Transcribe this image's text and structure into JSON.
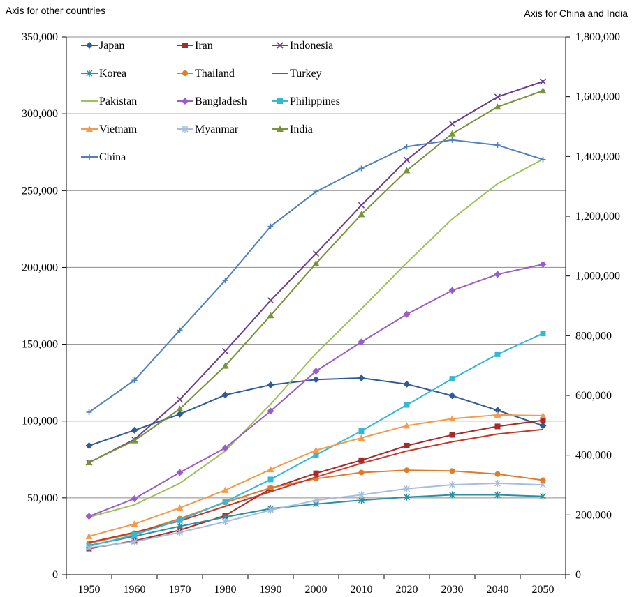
{
  "chart_data": {
    "type": "line",
    "left_axis_title": "Axis for other countries",
    "right_axis_title": "Axis for China and India",
    "categories": [
      "1950",
      "1960",
      "1970",
      "1980",
      "1990",
      "2000",
      "2010",
      "2020",
      "2030",
      "2040",
      "2050"
    ],
    "ylim_left": [
      0,
      350000
    ],
    "ylim_right": [
      0,
      1800000
    ],
    "yticks_left": [
      "0",
      "50,000",
      "100,000",
      "150,000",
      "200,000",
      "250,000",
      "300,000",
      "350,000"
    ],
    "yticks_right": [
      "0",
      "200,000",
      "400,000",
      "600,000",
      "800,000",
      "1,000,000",
      "1,200,000",
      "1,400,000",
      "1,600,000",
      "1,800,000"
    ],
    "grid": true,
    "legend_placement": "top-left",
    "series": [
      {
        "name": "Japan",
        "axis": "left",
        "color": "#2e5b98",
        "marker": "diamond",
        "values": [
          84000,
          94000,
          104500,
          117000,
          123500,
          127000,
          128000,
          124000,
          116500,
          107000,
          97000
        ]
      },
      {
        "name": "Iran",
        "axis": "left",
        "color": "#a52a2a",
        "marker": "square",
        "values": [
          17000,
          22000,
          29000,
          38500,
          56000,
          66000,
          74500,
          84000,
          91000,
          96500,
          100500
        ]
      },
      {
        "name": "Indonesia",
        "axis": "left",
        "color": "#6a3d8c",
        "marker": "x",
        "values": [
          73000,
          88000,
          114000,
          145500,
          178500,
          209000,
          240500,
          270000,
          293500,
          311000,
          321000
        ]
      },
      {
        "name": "Korea",
        "axis": "left",
        "color": "#2a8fa0",
        "marker": "star",
        "values": [
          19000,
          25000,
          31500,
          37500,
          43000,
          46000,
          48500,
          50500,
          52000,
          52000,
          51000
        ]
      },
      {
        "name": "Thailand",
        "axis": "left",
        "color": "#e07b2a",
        "marker": "circle",
        "values": [
          20500,
          27000,
          36500,
          47000,
          56500,
          62500,
          66500,
          68000,
          67500,
          65500,
          61500
        ]
      },
      {
        "name": "Turkey",
        "axis": "left",
        "color": "#c0392b",
        "marker": "none",
        "values": [
          21000,
          27500,
          35000,
          44500,
          54000,
          63500,
          72500,
          80500,
          86500,
          91500,
          94500
        ]
      },
      {
        "name": "Pakistan",
        "axis": "left",
        "color": "#9bc35a",
        "marker": "none",
        "values": [
          37500,
          45500,
          59500,
          80500,
          111000,
          144000,
          173000,
          203000,
          231500,
          254500,
          270500
        ]
      },
      {
        "name": "Bangladesh",
        "axis": "left",
        "color": "#9a5cc7",
        "marker": "diamond",
        "values": [
          38000,
          49500,
          66500,
          82500,
          106500,
          132500,
          151500,
          169500,
          185000,
          195500,
          202000
        ]
      },
      {
        "name": "Philippines",
        "axis": "left",
        "color": "#33b8d6",
        "marker": "square",
        "values": [
          18500,
          26000,
          35500,
          47500,
          62000,
          78000,
          93500,
          110500,
          127500,
          143500,
          157000
        ]
      },
      {
        "name": "Vietnam",
        "axis": "left",
        "color": "#f49a4a",
        "marker": "triangle",
        "values": [
          25000,
          33000,
          43500,
          55000,
          68500,
          81000,
          89000,
          97000,
          101500,
          104000,
          103500
        ]
      },
      {
        "name": "Myanmar",
        "axis": "left",
        "color": "#a7bde0",
        "marker": "star",
        "values": [
          17500,
          21500,
          27500,
          34500,
          42000,
          48500,
          52000,
          56000,
          58500,
          59500,
          58500
        ]
      },
      {
        "name": "India",
        "axis": "right",
        "color": "#77933c",
        "marker": "triangle",
        "values": [
          376000,
          449000,
          555000,
          699000,
          868000,
          1042000,
          1206000,
          1353000,
          1476000,
          1566000,
          1620000
        ]
      },
      {
        "name": "China",
        "axis": "right",
        "color": "#4f81bd",
        "marker": "plus",
        "values": [
          544000,
          651000,
          818000,
          985000,
          1166000,
          1282000,
          1360000,
          1433000,
          1455000,
          1438000,
          1390000
        ]
      }
    ]
  }
}
